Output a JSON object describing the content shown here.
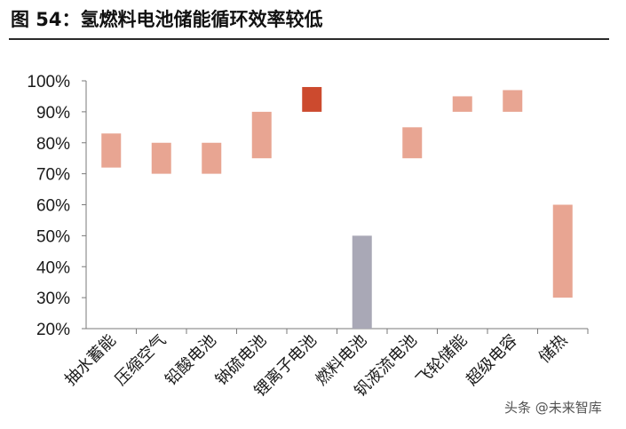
{
  "figure": {
    "title": "图 54：氢燃料电池储能循环效率较低",
    "watermark": "头条 @未来智库"
  },
  "colors": {
    "range_bar": "#e8a592",
    "highlight_bar": "#cc4a2e",
    "fuel_cell_bar": "#a9a8b6",
    "axis": "#7a7a7a"
  },
  "chart_data": {
    "type": "bar",
    "title": "",
    "xlabel": "",
    "ylabel": "",
    "ylim": [
      20,
      100
    ],
    "yticks": [
      20,
      30,
      40,
      50,
      60,
      70,
      80,
      90,
      100
    ],
    "ytick_labels": [
      "20%",
      "30%",
      "40%",
      "50%",
      "60%",
      "70%",
      "80%",
      "90%",
      "100%"
    ],
    "grid": false,
    "categories": [
      "抽水蓄能",
      "压缩空气",
      "铅酸电池",
      "钠硫电池",
      "锂离子电池",
      "燃料电池",
      "钒液流电池",
      "飞轮储能",
      "超级电容",
      "储热"
    ],
    "ranges": [
      {
        "low": 72,
        "high": 83,
        "color": "range"
      },
      {
        "low": 70,
        "high": 80,
        "color": "range"
      },
      {
        "low": 70,
        "high": 80,
        "color": "range"
      },
      {
        "low": 75,
        "high": 90,
        "color": "range"
      },
      {
        "low": 90,
        "high": 98,
        "color": "highlight"
      },
      {
        "low": 20,
        "high": 50,
        "color": "fuel"
      },
      {
        "low": 75,
        "high": 85,
        "color": "range"
      },
      {
        "low": 90,
        "high": 95,
        "color": "range"
      },
      {
        "low": 90,
        "high": 97,
        "color": "range"
      },
      {
        "low": 30,
        "high": 60,
        "color": "range"
      }
    ]
  }
}
